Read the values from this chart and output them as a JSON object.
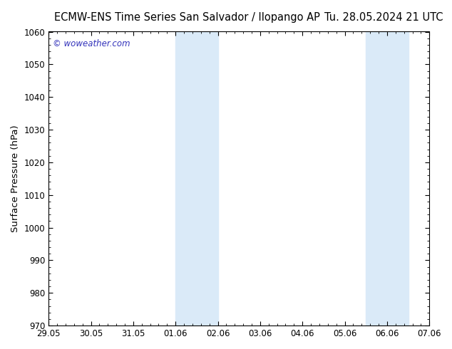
{
  "title_left": "ECMW-ENS Time Series San Salvador / Ilopango AP",
  "title_right": "Tu. 28.05.2024 21 UTC",
  "ylabel": "Surface Pressure (hPa)",
  "ylim": [
    970,
    1060
  ],
  "yticks": [
    970,
    980,
    990,
    1000,
    1010,
    1020,
    1030,
    1040,
    1050,
    1060
  ],
  "xtick_labels": [
    "29.05",
    "30.05",
    "31.05",
    "01.06",
    "02.06",
    "03.06",
    "04.06",
    "05.06",
    "06.06",
    "07.06"
  ],
  "xtick_positions": [
    0,
    1,
    2,
    3,
    4,
    5,
    6,
    7,
    8,
    9
  ],
  "xlim": [
    0,
    9
  ],
  "shade_bands": [
    {
      "xmin": 3.0,
      "xmax": 4.0,
      "color": "#daeaf8"
    },
    {
      "xmin": 7.5,
      "xmax": 8.5,
      "color": "#daeaf8"
    }
  ],
  "watermark_text": "© woweather.com",
  "watermark_color": "#3333bb",
  "bg_color": "#ffffff",
  "plot_bg_color": "#ffffff",
  "title_fontsize": 10.5,
  "tick_fontsize": 8.5,
  "ylabel_fontsize": 9.5
}
